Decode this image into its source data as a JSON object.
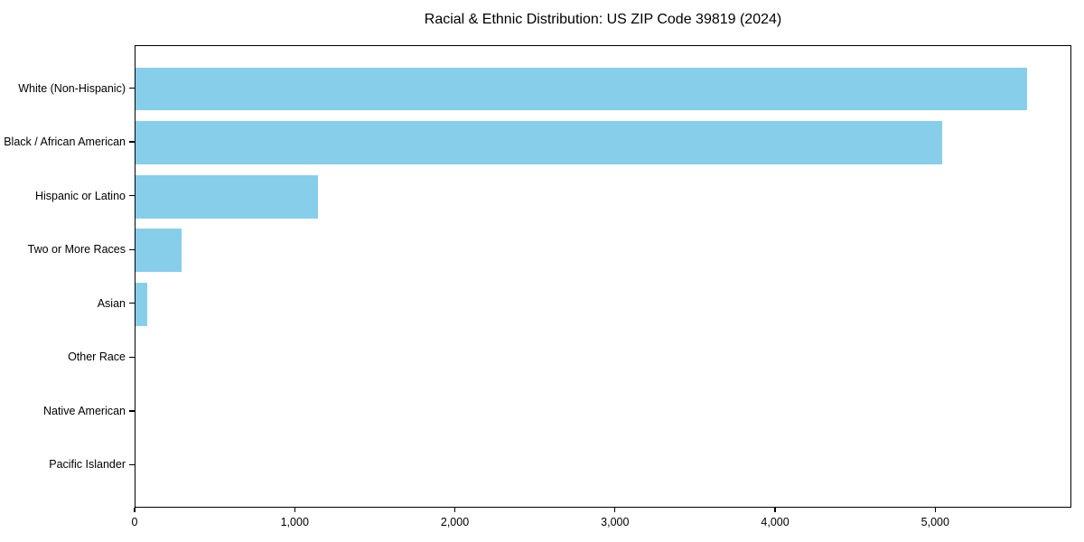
{
  "chart_data": {
    "type": "bar",
    "orientation": "horizontal",
    "title": "Racial & Ethnic Distribution: US ZIP Code 39819 (2024)",
    "categories": [
      "White (Non-Hispanic)",
      "Black / African American",
      "Hispanic or Latino",
      "Two or More Races",
      "Asian",
      "Other Race",
      "Native American",
      "Pacific Islander"
    ],
    "values": [
      5570,
      5040,
      1140,
      290,
      72,
      0,
      0,
      0
    ],
    "xlabel": "",
    "ylabel": "",
    "xlim": [
      0,
      5850
    ],
    "xticks": [
      {
        "value": 0,
        "label": "0"
      },
      {
        "value": 1000,
        "label": "1,000"
      },
      {
        "value": 2000,
        "label": "2,000"
      },
      {
        "value": 3000,
        "label": "3,000"
      },
      {
        "value": 4000,
        "label": "4,000"
      },
      {
        "value": 5000,
        "label": "5,000"
      }
    ],
    "bar_color": "#87CEEB",
    "grid": false,
    "legend": "none"
  }
}
